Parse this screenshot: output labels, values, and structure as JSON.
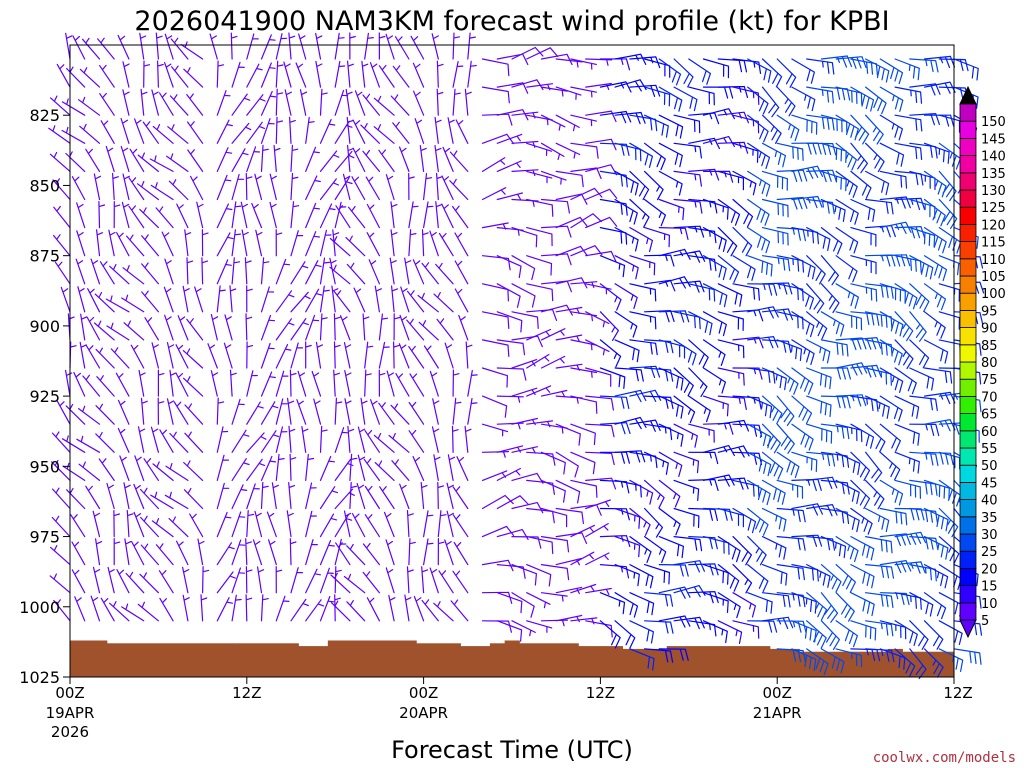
{
  "chart_data": {
    "type": "wind_barb_time_height",
    "title": "2026041900 NAM3KM forecast wind profile (kt) for KPBI",
    "xlabel": "Forecast Time (UTC)",
    "ylabel": "",
    "y_axis": {
      "ylim": [
        1025,
        800
      ],
      "ticks": [
        825,
        850,
        875,
        900,
        925,
        950,
        975,
        1000,
        1025
      ],
      "levels_mb": [
        805,
        815,
        825,
        835,
        845,
        855,
        865,
        875,
        885,
        895,
        905,
        915,
        925,
        935,
        945,
        955,
        965,
        975,
        985,
        995,
        1005,
        1015
      ]
    },
    "x_axis": {
      "range_hours": [
        0,
        60
      ],
      "step_hours": 1,
      "ticks": [
        {
          "hour": 0,
          "label": "00Z",
          "date": "19APR",
          "year": "2026"
        },
        {
          "hour": 12,
          "label": "12Z",
          "date": "",
          "year": ""
        },
        {
          "hour": 24,
          "label": "00Z",
          "date": "20APR",
          "year": ""
        },
        {
          "hour": 36,
          "label": "12Z",
          "date": "",
          "year": ""
        },
        {
          "hour": 48,
          "label": "00Z",
          "date": "21APR",
          "year": ""
        },
        {
          "hour": 60,
          "label": "12Z",
          "date": "",
          "year": ""
        }
      ]
    },
    "wind_regimes": [
      {
        "from_hour": 0,
        "to_hour": 10,
        "direction_deg": 330,
        "speed_kt": 6
      },
      {
        "from_hour": 10,
        "to_hour": 19,
        "direction_deg": 10,
        "speed_kt": 6
      },
      {
        "from_hour": 19,
        "to_hour": 28,
        "direction_deg": 340,
        "speed_kt": 6
      },
      {
        "from_hour": 28,
        "to_hour": 36,
        "direction_deg": 90,
        "speed_kt": 8
      },
      {
        "from_hour": 36,
        "to_hour": 46,
        "direction_deg": 105,
        "speed_kt": 18
      },
      {
        "from_hour": 46,
        "to_hour": 60,
        "direction_deg": 110,
        "speed_kt": 26
      }
    ],
    "surface_pressure_mb": [
      {
        "from_hour": 0,
        "to_hour": 2.5,
        "value": 1012
      },
      {
        "from_hour": 2.5,
        "to_hour": 11.5,
        "value": 1013
      },
      {
        "from_hour": 11.5,
        "to_hour": 15.5,
        "value": 1013
      },
      {
        "from_hour": 15.5,
        "to_hour": 17.5,
        "value": 1014
      },
      {
        "from_hour": 17.5,
        "to_hour": 23.5,
        "value": 1012
      },
      {
        "from_hour": 23.5,
        "to_hour": 26.5,
        "value": 1013
      },
      {
        "from_hour": 26.5,
        "to_hour": 28.5,
        "value": 1014
      },
      {
        "from_hour": 28.5,
        "to_hour": 29.5,
        "value": 1013
      },
      {
        "from_hour": 29.5,
        "to_hour": 30.5,
        "value": 1012
      },
      {
        "from_hour": 30.5,
        "to_hour": 34.5,
        "value": 1013
      },
      {
        "from_hour": 34.5,
        "to_hour": 37.5,
        "value": 1014
      },
      {
        "from_hour": 37.5,
        "to_hour": 40.5,
        "value": 1015
      },
      {
        "from_hour": 40.5,
        "to_hour": 47.5,
        "value": 1014
      },
      {
        "from_hour": 47.5,
        "to_hour": 49.5,
        "value": 1015
      },
      {
        "from_hour": 49.5,
        "to_hour": 55.5,
        "value": 1016
      },
      {
        "from_hour": 55.5,
        "to_hour": 56.5,
        "value": 1015
      },
      {
        "from_hour": 56.5,
        "to_hour": 60,
        "value": 1016
      }
    ],
    "terrain_color": "#a0522d",
    "colorbar": {
      "min": 5,
      "max": 150,
      "step": 5,
      "labels": [
        "5",
        "10",
        "15",
        "20",
        "25",
        "30",
        "35",
        "40",
        "45",
        "50",
        "55",
        "60",
        "65",
        "70",
        "75",
        "80",
        "85",
        "90",
        "95",
        "100",
        "105",
        "110",
        "115",
        "120",
        "125",
        "130",
        "135",
        "140",
        "145",
        "150"
      ],
      "colors": [
        "#6000ff",
        "#3000ff",
        "#0000ff",
        "#0020f8",
        "#0048f0",
        "#0070e8",
        "#0098e0",
        "#00b8e0",
        "#00d8e0",
        "#00e8b0",
        "#00e870",
        "#00e830",
        "#30f000",
        "#70f000",
        "#b0f800",
        "#f0f800",
        "#f8e000",
        "#f8c000",
        "#f8a000",
        "#f88000",
        "#f86000",
        "#f84000",
        "#f82000",
        "#f80000",
        "#f00040",
        "#f00070",
        "#f000a0",
        "#f000c0",
        "#e800e0",
        "#c000c0"
      ]
    }
  },
  "credit": {
    "text": "coolwx.com/models",
    "color": "#b03040"
  }
}
